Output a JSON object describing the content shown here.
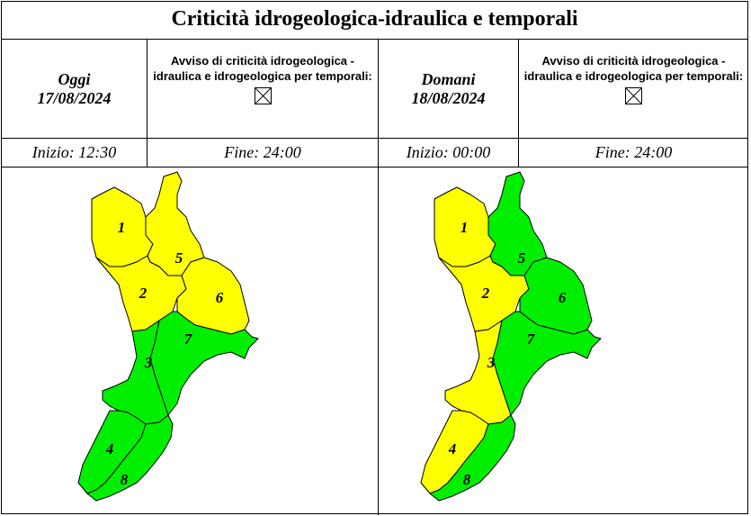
{
  "title": "Criticità idrogeologica-idraulica e temporali",
  "days": [
    {
      "label": "Oggi",
      "date": "17/08/2024",
      "avviso": "Avviso di criticità idrogeologica - idraulica e idrogeologica per temporali:",
      "avviso_checked": false,
      "inizio": "Inizio: 12:30",
      "fine": "Fine: 24:00",
      "zones": [
        {
          "id": "1",
          "level": "yellow"
        },
        {
          "id": "2",
          "level": "yellow"
        },
        {
          "id": "3",
          "level": "green"
        },
        {
          "id": "4",
          "level": "green"
        },
        {
          "id": "5",
          "level": "yellow"
        },
        {
          "id": "6",
          "level": "yellow"
        },
        {
          "id": "7",
          "level": "green"
        },
        {
          "id": "8",
          "level": "green"
        }
      ]
    },
    {
      "label": "Domani",
      "date": "18/08/2024",
      "avviso": "Avviso di criticità idrogeologica - idraulica e idrogeologica per temporali:",
      "avviso_checked": false,
      "inizio": "Inizio: 00:00",
      "fine": "Fine: 24:00",
      "zones": [
        {
          "id": "1",
          "level": "yellow"
        },
        {
          "id": "2",
          "level": "yellow"
        },
        {
          "id": "3",
          "level": "yellow"
        },
        {
          "id": "4",
          "level": "yellow"
        },
        {
          "id": "5",
          "level": "green"
        },
        {
          "id": "6",
          "level": "green"
        },
        {
          "id": "7",
          "level": "green"
        },
        {
          "id": "8",
          "level": "green"
        }
      ]
    }
  ],
  "colors": {
    "yellow": "#ffff00",
    "green": "#00ee00",
    "border": "#000000"
  }
}
